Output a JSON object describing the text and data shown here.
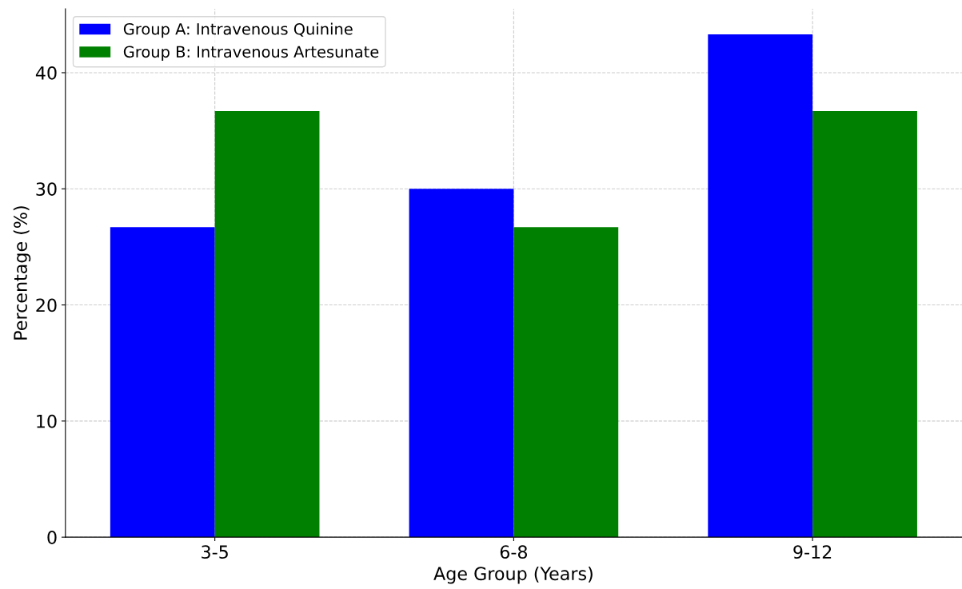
{
  "chart_data": {
    "type": "bar",
    "xlabel": "Age Group (Years)",
    "ylabel": "Percentage (%)",
    "categories": [
      "3-5",
      "6-8",
      "9-12"
    ],
    "series": [
      {
        "name": "Group A: Intravenous Quinine",
        "color": "#0000ff",
        "values": [
          26.7,
          30.0,
          43.3
        ]
      },
      {
        "name": "Group B: Intravenous Artesunate",
        "color": "#008000",
        "values": [
          36.7,
          26.7,
          36.7
        ]
      }
    ],
    "ylim": [
      0,
      45.5
    ],
    "yticks": [
      0,
      10,
      20,
      30,
      40
    ],
    "grid": true,
    "legend": "top left"
  }
}
